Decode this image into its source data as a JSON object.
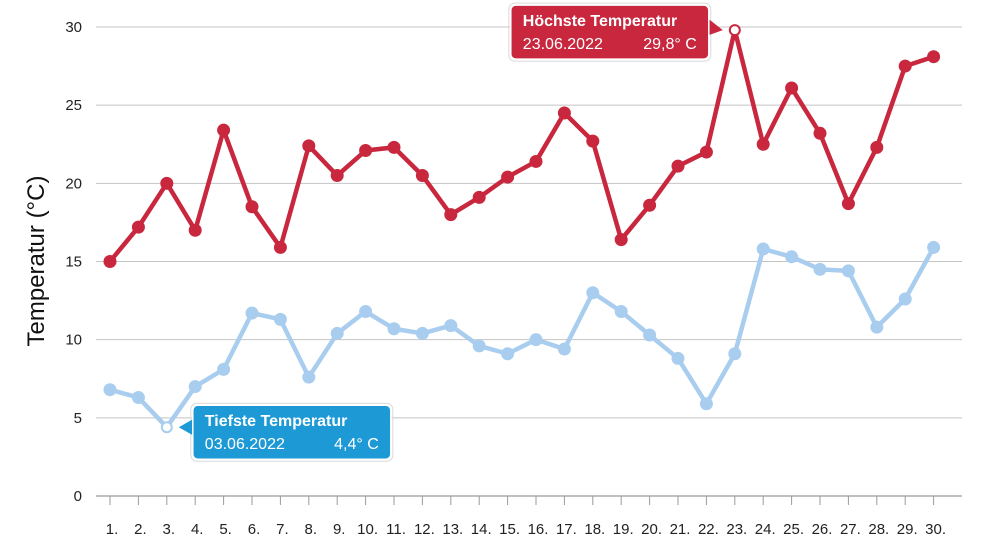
{
  "chart_data": {
    "type": "line",
    "title": "",
    "xlabel": "",
    "ylabel": "Temperatur (°C)",
    "ylim": [
      0,
      30
    ],
    "yticks": [
      0,
      5,
      10,
      15,
      20,
      25,
      30
    ],
    "grid": true,
    "categories": [
      "1.",
      "2.",
      "3.",
      "4.",
      "5.",
      "6.",
      "7.",
      "8.",
      "9.",
      "10.",
      "11.",
      "12.",
      "13.",
      "14.",
      "15.",
      "16.",
      "17.",
      "18.",
      "19.",
      "20.",
      "21.",
      "22.",
      "23.",
      "24.",
      "25.",
      "26.",
      "27.",
      "28.",
      "29.",
      "30."
    ],
    "series": [
      {
        "color": "#c8273e",
        "values": [
          15.0,
          17.2,
          20.0,
          17.0,
          23.4,
          18.5,
          15.9,
          22.4,
          20.5,
          22.1,
          22.3,
          20.5,
          18.0,
          19.1,
          20.4,
          21.4,
          24.5,
          22.7,
          16.4,
          18.6,
          21.1,
          22.0,
          29.8,
          22.5,
          26.1,
          23.2,
          18.7,
          22.3,
          27.5,
          28.1
        ]
      },
      {
        "color": "#a9cdee",
        "values": [
          6.8,
          6.3,
          4.4,
          7.0,
          8.1,
          11.7,
          11.3,
          7.6,
          10.4,
          11.8,
          10.7,
          10.4,
          10.9,
          9.6,
          9.1,
          10.0,
          9.4,
          13.0,
          11.8,
          10.3,
          8.8,
          5.9,
          9.1,
          15.8,
          15.3,
          14.5,
          14.4,
          10.8,
          12.6,
          15.9
        ]
      }
    ],
    "annotations": [
      {
        "series_index": 0,
        "point_index": 22,
        "title": "Höchste Temperatur",
        "date": "23.06.2022",
        "value": "29,8° C",
        "color": "#c8273e",
        "position": "left"
      },
      {
        "series_index": 1,
        "point_index": 2,
        "title": "Tiefste Temperatur",
        "date": "03.06.2022",
        "value": "4,4° C",
        "color": "#1d9ad6",
        "position": "right"
      }
    ]
  }
}
